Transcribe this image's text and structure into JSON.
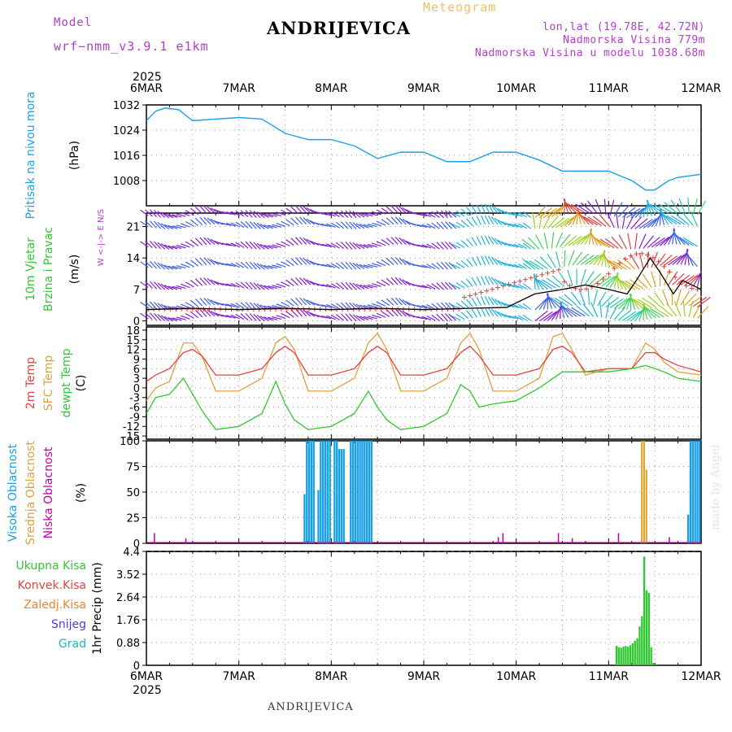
{
  "header": {
    "model_label": "Model",
    "model_name": "wrf−nmm_v3.9.1  e1km",
    "meteogram_label": "Meteogram",
    "station": "ANDRIJEVICA",
    "lonlat": "lon,lat (19.78E, 42.72N)",
    "altitude": "Nadmorska Visina 779m",
    "model_altitude": "Nadmorska Visina u modelu 1038.68m"
  },
  "watermark": "made by Angel",
  "footer": {
    "station": "ANDRIJEVICA",
    "year": "2025"
  },
  "colors": {
    "pressure": "#1ea0e8",
    "temp2m": "#e84040",
    "sfctemp": "#e0a040",
    "dewpt": "#30c830",
    "cloud_high": "#18a0e8",
    "cloud_mid": "#e8a020",
    "cloud_low": "#c000a0",
    "precip": "#30c830",
    "wind_speed": "#000000",
    "label_purple": "#b040c8"
  },
  "chart_data": [
    {
      "id": "pressure",
      "type": "line",
      "ylabel_lines": [
        "Pritisak na nivou mora",
        "(hPa)"
      ],
      "ylim": [
        1000,
        1032
      ],
      "yticks": [
        1008,
        1016,
        1024,
        1032
      ],
      "x": [
        0,
        0.1,
        0.2,
        0.35,
        0.5,
        0.75,
        1.0,
        1.25,
        1.5,
        1.75,
        2.0,
        2.25,
        2.5,
        2.75,
        3.0,
        3.25,
        3.5,
        3.75,
        4.0,
        4.25,
        4.5,
        4.75,
        5.0,
        5.25,
        5.4,
        5.5,
        5.65,
        5.75,
        6.0
      ],
      "series": [
        {
          "values": [
            1027,
            1030,
            1031,
            1030.5,
            1027,
            1027.5,
            1028,
            1027.5,
            1023,
            1021,
            1021,
            1019,
            1015,
            1017,
            1017,
            1014,
            1014,
            1017,
            1017,
            1014.5,
            1011,
            1011,
            1011,
            1008,
            1005,
            1005,
            1008,
            1009,
            1010
          ]
        }
      ]
    },
    {
      "id": "wind",
      "type": "line",
      "ylabel_lines": [
        "10m Vjetar",
        "Brzina i Pravac",
        "(m/s)"
      ],
      "compass_label": "W <-|-> E  N/S",
      "ylim": [
        -1,
        24
      ],
      "yticks": [
        0,
        7,
        14,
        21
      ],
      "barb_levels": [
        0.5,
        3,
        7.5,
        12,
        16.5,
        21,
        23.5
      ],
      "x": [
        0,
        0.5,
        1.0,
        1.5,
        2.0,
        2.5,
        3.0,
        3.5,
        3.9,
        4.2,
        4.5,
        4.75,
        5.0,
        5.2,
        5.3,
        5.45,
        5.55,
        5.7,
        5.8,
        6.0
      ],
      "series": [
        {
          "name": "speed",
          "values": [
            2.5,
            2.8,
            2.5,
            2.8,
            2.5,
            2.8,
            2.5,
            2.8,
            3,
            6,
            7,
            8,
            7,
            6,
            9,
            14,
            11,
            6,
            9,
            7
          ]
        }
      ]
    },
    {
      "id": "temperature",
      "type": "line",
      "ylabel_lines": [
        "2m Temp",
        "SFC Temp",
        "dewpt Temp",
        "(C)"
      ],
      "ylim": [
        -16,
        19
      ],
      "yticks": [
        -15,
        -12,
        -9,
        -6,
        -3,
        0,
        3,
        6,
        9,
        12,
        15,
        18
      ],
      "x": [
        0,
        0.1,
        0.25,
        0.4,
        0.5,
        0.6,
        0.75,
        1.0,
        1.25,
        1.4,
        1.5,
        1.6,
        1.75,
        2.0,
        2.25,
        2.4,
        2.5,
        2.6,
        2.75,
        3.0,
        3.25,
        3.4,
        3.5,
        3.6,
        3.75,
        4.0,
        4.25,
        4.4,
        4.5,
        4.6,
        4.75,
        5.0,
        5.25,
        5.4,
        5.5,
        5.6,
        5.75,
        6.0
      ],
      "series": [
        {
          "name": "2m Temp",
          "values": [
            2,
            4,
            6,
            11,
            12,
            10,
            4,
            4,
            6,
            11,
            13,
            11,
            4,
            4,
            6,
            11,
            13,
            11,
            4,
            4,
            6,
            11,
            13,
            10,
            4,
            4,
            6,
            12,
            13,
            11,
            5,
            6,
            6,
            11,
            11,
            9,
            7,
            5
          ]
        },
        {
          "name": "SFC Temp",
          "values": [
            -4,
            0,
            2,
            14,
            14,
            10,
            -1,
            -1,
            3,
            14,
            16,
            12,
            -1,
            -1,
            3,
            14,
            17,
            12,
            -1,
            -1,
            3,
            14,
            17,
            12,
            -1,
            -1,
            3,
            16,
            17,
            12,
            4,
            6,
            6,
            14,
            12,
            8,
            5,
            4
          ]
        },
        {
          "name": "dewpt Temp",
          "values": [
            -8,
            -3,
            -2,
            3,
            -2,
            -7,
            -13,
            -12,
            -8,
            2,
            -5,
            -10,
            -13,
            -12,
            -8,
            -1,
            -6,
            -10,
            -13,
            -12,
            -8,
            1,
            -1,
            -6,
            -5,
            -4,
            0,
            3,
            5,
            5,
            5,
            5,
            6,
            7,
            6,
            5,
            3,
            2
          ]
        }
      ]
    },
    {
      "id": "cloud",
      "type": "bar",
      "ylabel_lines": [
        "Visoka Oblacnost",
        "Srednja Oblacnost",
        "Niska Oblacnost",
        "(%)"
      ],
      "ylim": [
        0,
        100
      ],
      "yticks": [
        0,
        25,
        50,
        75,
        100
      ],
      "high": {
        "x": [
          1.7,
          1.725,
          1.75,
          1.775,
          1.8,
          1.85,
          1.875,
          1.9,
          1.925,
          1.95,
          1.975,
          2.025,
          2.05,
          2.075,
          2.1,
          2.125,
          2.2,
          2.225,
          2.25,
          2.275,
          2.3,
          2.325,
          2.35,
          2.375,
          2.4,
          2.425,
          5.85,
          5.875,
          5.9,
          5.925,
          5.95,
          5.975
        ],
        "values": [
          48,
          100,
          100,
          100,
          100,
          52,
          100,
          100,
          100,
          100,
          100,
          100,
          100,
          92,
          92,
          92,
          100,
          100,
          100,
          100,
          100,
          100,
          100,
          100,
          100,
          100,
          28,
          100,
          100,
          100,
          100,
          100
        ]
      },
      "mid": {
        "x": [
          5.35,
          5.375,
          5.4
        ],
        "values": [
          100,
          100,
          72
        ]
      },
      "low": {
        "x": [
          0.08,
          0.42,
          3.8,
          3.85,
          4.45,
          4.6,
          5.1,
          5.65
        ],
        "values": [
          10,
          5,
          6,
          10,
          10,
          5,
          10,
          6
        ]
      }
    },
    {
      "id": "precip",
      "type": "bar",
      "ylabel_lines": [
        "1hr Precip (mm)"
      ],
      "legend": [
        "Ukupna Kisa",
        "Konvek.Kisa",
        "Zaledj.Kisa",
        "Snijeg",
        "Grad"
      ],
      "ylim": [
        0,
        4.4
      ],
      "yticks": [
        0,
        0.88,
        1.76,
        2.64,
        3.52,
        4.4
      ],
      "x": [
        5.075,
        5.1,
        5.125,
        5.15,
        5.175,
        5.2,
        5.225,
        5.25,
        5.275,
        5.3,
        5.325,
        5.35,
        5.375,
        5.4,
        5.425,
        5.45,
        5.475,
        5.5
      ],
      "values": [
        0.75,
        0.7,
        0.68,
        0.72,
        0.75,
        0.72,
        0.78,
        0.85,
        0.95,
        1.05,
        1.5,
        1.9,
        4.2,
        2.9,
        2.8,
        0.7,
        0.1,
        0.05
      ]
    }
  ],
  "xaxis": {
    "labels": [
      "6MAR",
      "7MAR",
      "8MAR",
      "9MAR",
      "10MAR",
      "11MAR",
      "12MAR"
    ]
  }
}
